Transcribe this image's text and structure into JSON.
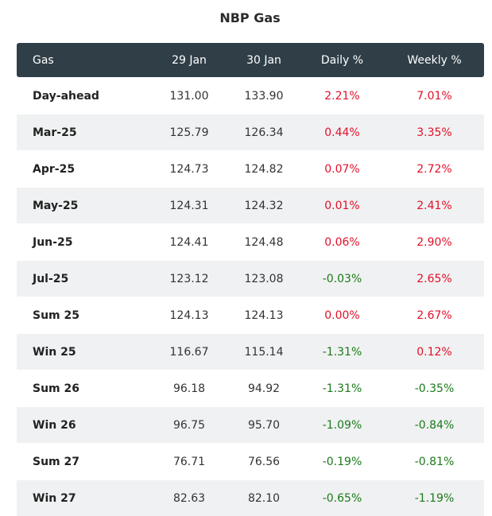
{
  "title": "NBP Gas",
  "columns": [
    "Gas",
    "29 Jan",
    "30 Jan",
    "Daily %",
    "Weekly %"
  ],
  "colors": {
    "header_bg": "#2f3e47",
    "stripe_bg": "#f0f1f2",
    "positive": "#e0102a",
    "negative": "#1a7a1a"
  },
  "rows": [
    {
      "gas": "Day-ahead",
      "d29": "131.00",
      "d30": "133.90",
      "daily": "2.21%",
      "weekly": "7.01%"
    },
    {
      "gas": "Mar-25",
      "d29": "125.79",
      "d30": "126.34",
      "daily": "0.44%",
      "weekly": "3.35%"
    },
    {
      "gas": "Apr-25",
      "d29": "124.73",
      "d30": "124.82",
      "daily": "0.07%",
      "weekly": "2.72%"
    },
    {
      "gas": "May-25",
      "d29": "124.31",
      "d30": "124.32",
      "daily": "0.01%",
      "weekly": "2.41%"
    },
    {
      "gas": "Jun-25",
      "d29": "124.41",
      "d30": "124.48",
      "daily": "0.06%",
      "weekly": "2.90%"
    },
    {
      "gas": "Jul-25",
      "d29": "123.12",
      "d30": "123.08",
      "daily": "-0.03%",
      "weekly": "2.65%"
    },
    {
      "gas": "Sum 25",
      "d29": "124.13",
      "d30": "124.13",
      "daily": "0.00%",
      "weekly": "2.67%"
    },
    {
      "gas": "Win 25",
      "d29": "116.67",
      "d30": "115.14",
      "daily": "-1.31%",
      "weekly": "0.12%"
    },
    {
      "gas": "Sum 26",
      "d29": "96.18",
      "d30": "94.92",
      "daily": "-1.31%",
      "weekly": "-0.35%"
    },
    {
      "gas": "Win 26",
      "d29": "96.75",
      "d30": "95.70",
      "daily": "-1.09%",
      "weekly": "-0.84%"
    },
    {
      "gas": "Sum 27",
      "d29": "76.71",
      "d30": "76.56",
      "daily": "-0.19%",
      "weekly": "-0.81%"
    },
    {
      "gas": "Win 27",
      "d29": "82.63",
      "d30": "82.10",
      "daily": "-0.65%",
      "weekly": "-1.19%"
    }
  ]
}
